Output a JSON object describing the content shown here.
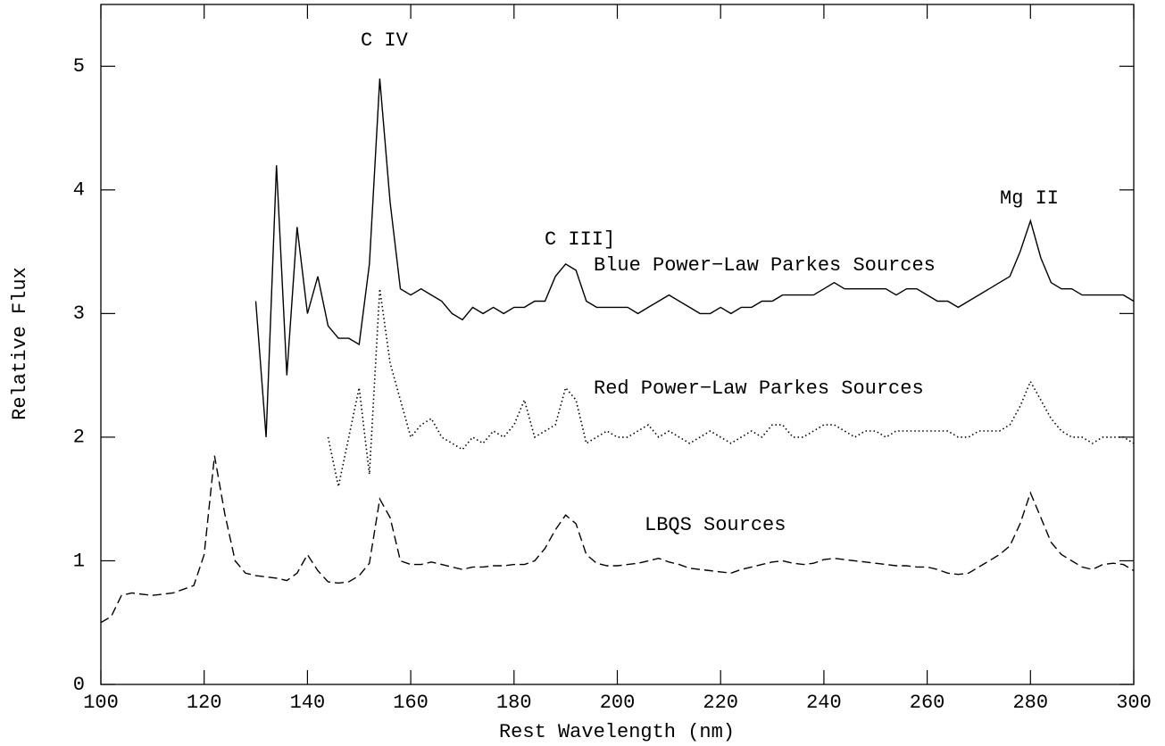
{
  "chart_data": {
    "type": "line",
    "xlabel": "Rest Wavelength (nm)",
    "ylabel": "Relative Flux",
    "annotations": [
      "C IV",
      "C III]",
      "Mg II"
    ],
    "x": [
      100,
      102,
      104,
      106,
      108,
      110,
      112,
      114,
      116,
      118,
      120,
      122,
      124,
      126,
      128,
      130,
      132,
      134,
      136,
      138,
      140,
      142,
      144,
      146,
      148,
      150,
      152,
      154,
      156,
      158,
      160,
      162,
      164,
      166,
      168,
      170,
      172,
      174,
      176,
      178,
      180,
      182,
      184,
      186,
      188,
      190,
      192,
      194,
      196,
      198,
      200,
      202,
      204,
      206,
      208,
      210,
      212,
      214,
      216,
      218,
      220,
      222,
      224,
      226,
      228,
      230,
      232,
      234,
      236,
      238,
      240,
      242,
      244,
      246,
      248,
      250,
      252,
      254,
      256,
      258,
      260,
      262,
      264,
      266,
      268,
      270,
      272,
      274,
      276,
      278,
      280,
      282,
      284,
      286,
      288,
      290,
      292,
      294,
      296,
      298,
      300
    ],
    "series": [
      {
        "name": "Blue Power−Law Parkes Sources",
        "color": "#000000",
        "dash": "solid",
        "values": [
          null,
          null,
          null,
          null,
          null,
          null,
          null,
          null,
          null,
          null,
          null,
          null,
          null,
          null,
          null,
          3.1,
          2.0,
          4.2,
          2.5,
          3.7,
          3.0,
          3.3,
          2.9,
          2.8,
          2.8,
          2.75,
          3.4,
          4.9,
          3.9,
          3.2,
          3.15,
          3.2,
          3.15,
          3.1,
          3.0,
          2.95,
          3.05,
          3.0,
          3.05,
          3.0,
          3.05,
          3.05,
          3.1,
          3.1,
          3.3,
          3.4,
          3.35,
          3.1,
          3.05,
          3.05,
          3.05,
          3.05,
          3.0,
          3.05,
          3.1,
          3.15,
          3.1,
          3.05,
          3.0,
          3.0,
          3.05,
          3.0,
          3.05,
          3.05,
          3.1,
          3.1,
          3.15,
          3.15,
          3.15,
          3.15,
          3.2,
          3.25,
          3.2,
          3.2,
          3.2,
          3.2,
          3.2,
          3.15,
          3.2,
          3.2,
          3.15,
          3.1,
          3.1,
          3.05,
          3.1,
          3.15,
          3.2,
          3.25,
          3.3,
          3.5,
          3.75,
          3.45,
          3.25,
          3.2,
          3.2,
          3.15,
          3.15,
          3.15,
          3.15,
          3.15,
          3.1
        ]
      },
      {
        "name": "Red Power−Law Parkes Sources",
        "color": "#000000",
        "dash": "dotted",
        "values": [
          null,
          null,
          null,
          null,
          null,
          null,
          null,
          null,
          null,
          null,
          null,
          null,
          null,
          null,
          null,
          null,
          null,
          null,
          null,
          null,
          null,
          null,
          2.0,
          1.6,
          2.0,
          2.4,
          1.7,
          3.2,
          2.6,
          2.3,
          2.0,
          2.1,
          2.15,
          2.0,
          1.95,
          1.9,
          2.0,
          1.95,
          2.05,
          2.0,
          2.1,
          2.3,
          2.0,
          2.05,
          2.1,
          2.4,
          2.3,
          1.95,
          2.0,
          2.05,
          2.0,
          2.0,
          2.05,
          2.1,
          2.0,
          2.05,
          2.0,
          1.95,
          2.0,
          2.05,
          2.0,
          1.95,
          2.0,
          2.05,
          2.0,
          2.1,
          2.1,
          2.0,
          2.0,
          2.05,
          2.1,
          2.1,
          2.05,
          2.0,
          2.05,
          2.05,
          2.0,
          2.05,
          2.05,
          2.05,
          2.05,
          2.05,
          2.05,
          2.0,
          2.0,
          2.05,
          2.05,
          2.05,
          2.1,
          2.25,
          2.45,
          2.3,
          2.15,
          2.05,
          2.0,
          2.0,
          1.95,
          2.0,
          2.0,
          2.0,
          1.95
        ]
      },
      {
        "name": "LBQS Sources",
        "color": "#000000",
        "dash": "dashed",
        "values": [
          0.5,
          0.55,
          0.72,
          0.74,
          0.73,
          0.72,
          0.73,
          0.74,
          0.77,
          0.8,
          1.05,
          1.85,
          1.38,
          1.0,
          0.9,
          0.88,
          0.87,
          0.86,
          0.84,
          0.9,
          1.05,
          0.92,
          0.83,
          0.82,
          0.83,
          0.88,
          0.98,
          1.5,
          1.35,
          1.0,
          0.97,
          0.97,
          0.99,
          0.97,
          0.95,
          0.93,
          0.95,
          0.95,
          0.96,
          0.96,
          0.97,
          0.97,
          1.0,
          1.1,
          1.25,
          1.37,
          1.3,
          1.05,
          0.98,
          0.96,
          0.96,
          0.97,
          0.98,
          1.0,
          1.02,
          0.99,
          0.97,
          0.94,
          0.93,
          0.92,
          0.91,
          0.9,
          0.93,
          0.95,
          0.97,
          0.99,
          1.0,
          0.98,
          0.97,
          0.98,
          1.01,
          1.02,
          1.01,
          1.0,
          0.99,
          0.98,
          0.97,
          0.96,
          0.96,
          0.95,
          0.95,
          0.93,
          0.9,
          0.89,
          0.9,
          0.95,
          1.0,
          1.05,
          1.12,
          1.3,
          1.55,
          1.35,
          1.15,
          1.05,
          1.0,
          0.95,
          0.93,
          0.97,
          0.98,
          0.97,
          0.92
        ]
      }
    ],
    "xlim": [
      100,
      300
    ],
    "xticks": [
      100,
      120,
      140,
      160,
      180,
      200,
      220,
      240,
      260,
      280,
      300
    ],
    "ylim": [
      0,
      5.5
    ],
    "yticks": [
      0,
      1,
      2,
      3,
      4,
      5
    ],
    "grid": false
  }
}
